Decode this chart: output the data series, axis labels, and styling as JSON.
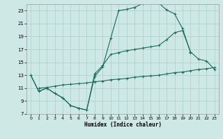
{
  "xlabel": "Humidex (Indice chaleur)",
  "bg_color": "#cde8e5",
  "grid_color": "#aacfcc",
  "line_color": "#1a6b5a",
  "xlim": [
    -0.5,
    23.5
  ],
  "ylim": [
    7,
    24
  ],
  "yticks": [
    7,
    9,
    11,
    13,
    15,
    17,
    19,
    21,
    23
  ],
  "xticks": [
    0,
    1,
    2,
    3,
    4,
    5,
    6,
    7,
    8,
    9,
    10,
    11,
    12,
    13,
    14,
    15,
    16,
    17,
    18,
    19,
    20,
    21,
    22,
    23
  ],
  "line1_x": [
    0,
    1,
    2,
    3,
    4,
    5,
    6,
    7,
    8,
    9,
    10,
    11,
    12,
    13,
    14,
    15,
    16,
    17,
    18,
    19,
    20
  ],
  "line1_y": [
    13,
    10.5,
    11,
    10.2,
    9.5,
    8.3,
    7.9,
    7.6,
    12.8,
    14.3,
    18.7,
    23.0,
    23.2,
    23.5,
    24.1,
    24.5,
    24.2,
    23.1,
    22.5,
    20.2,
    16.5
  ],
  "line2_x": [
    0,
    1,
    2,
    3,
    4,
    5,
    6,
    7,
    8,
    9,
    10,
    11,
    12,
    13,
    14,
    15,
    16,
    17,
    18,
    19,
    20,
    21,
    22,
    23
  ],
  "line2_y": [
    13,
    10.5,
    11,
    10.2,
    9.5,
    8.3,
    7.9,
    7.6,
    13.2,
    14.5,
    16.2,
    16.5,
    16.8,
    17.0,
    17.2,
    17.4,
    17.6,
    18.5,
    19.6,
    19.9,
    16.6,
    15.5,
    15.2,
    13.9
  ],
  "line3_x": [
    1,
    2,
    3,
    4,
    5,
    6,
    7,
    8,
    9,
    10,
    11,
    12,
    13,
    14,
    15,
    16,
    17,
    18,
    19,
    20,
    21,
    22,
    23
  ],
  "line3_y": [
    11.0,
    11.1,
    11.3,
    11.5,
    11.6,
    11.7,
    11.8,
    12.0,
    12.1,
    12.3,
    12.4,
    12.5,
    12.7,
    12.8,
    12.9,
    13.0,
    13.2,
    13.4,
    13.5,
    13.7,
    13.9,
    14.0,
    14.2
  ]
}
